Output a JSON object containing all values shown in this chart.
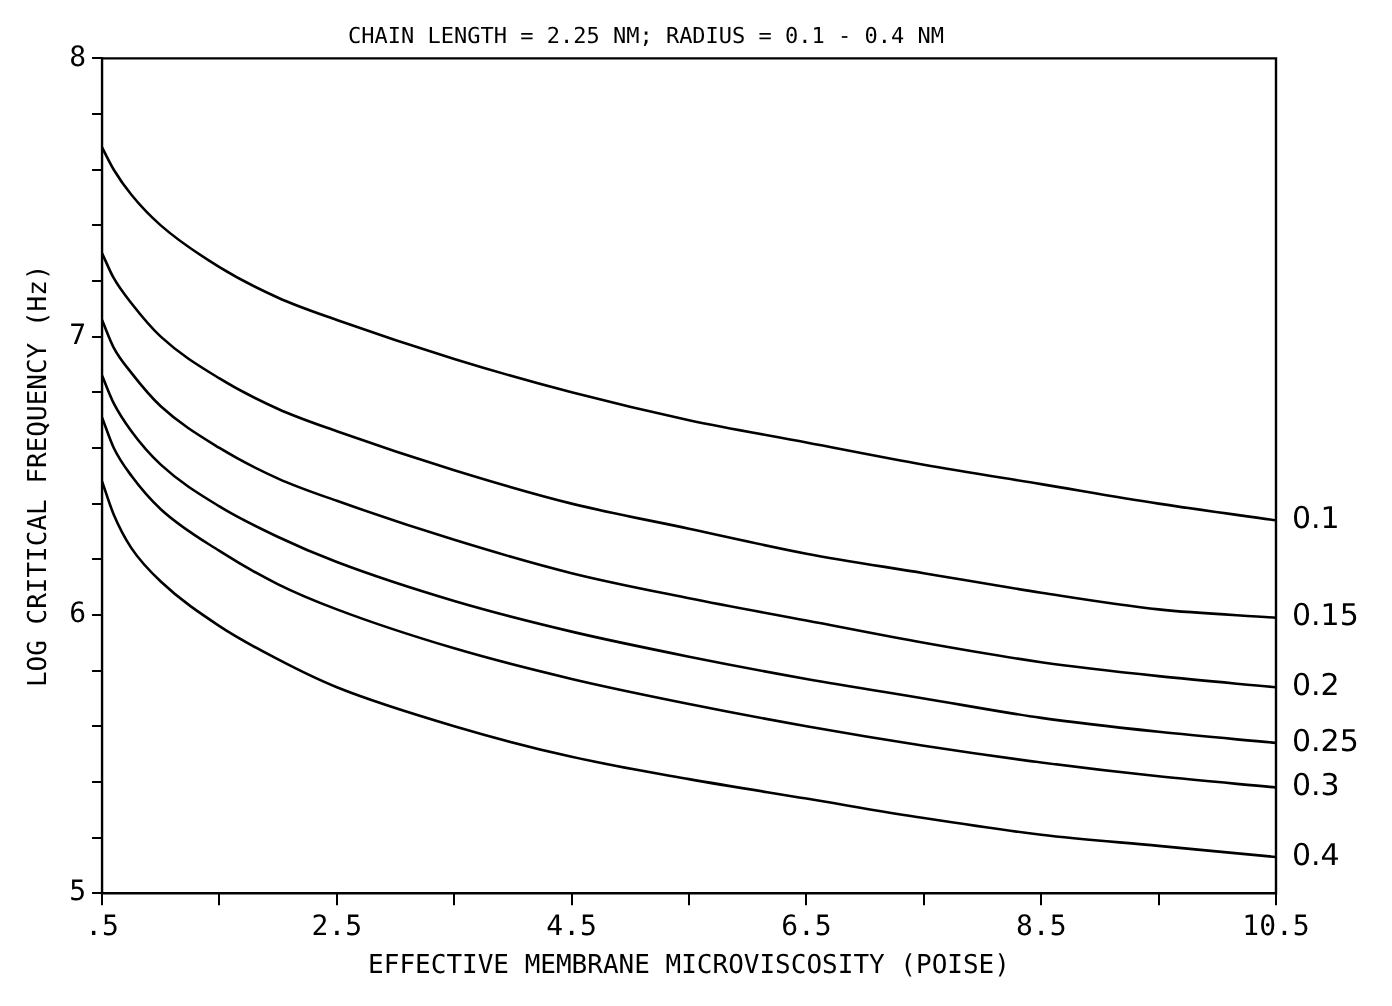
{
  "chart_data": {
    "type": "line",
    "title": "CHAIN LENGTH = 2.25 NM; RADIUS = 0.1 - 0.4 NM",
    "xlabel": "EFFECTIVE MEMBRANE MICROVISCOSITY (POISE)",
    "ylabel": "LOG CRITICAL FREQUENCY (Hz)",
    "x": [
      0.5,
      0.6,
      0.75,
      1,
      1.5,
      2,
      2.5,
      3.5,
      4.5,
      5.5,
      6.5,
      7.5,
      8.5,
      9.5,
      10.5
    ],
    "series": [
      {
        "name": "0.1",
        "color": "#000000",
        "values": [
          7.68,
          7.6,
          7.51,
          7.4,
          7.25,
          7.14,
          7.06,
          6.92,
          6.8,
          6.7,
          6.62,
          6.54,
          6.47,
          6.4,
          6.34
        ]
      },
      {
        "name": "0.15",
        "color": "#000000",
        "values": [
          7.3,
          7.21,
          7.12,
          7.0,
          6.85,
          6.74,
          6.66,
          6.52,
          6.4,
          6.31,
          6.22,
          6.15,
          6.08,
          6.02,
          5.99
        ]
      },
      {
        "name": "0.2",
        "color": "#000000",
        "values": [
          7.06,
          6.96,
          6.87,
          6.75,
          6.6,
          6.49,
          6.41,
          6.27,
          6.15,
          6.06,
          5.98,
          5.9,
          5.83,
          5.78,
          5.74
        ]
      },
      {
        "name": "0.25",
        "color": "#000000",
        "values": [
          6.86,
          6.76,
          6.66,
          6.54,
          6.39,
          6.28,
          6.19,
          6.05,
          5.94,
          5.85,
          5.77,
          5.7,
          5.63,
          5.58,
          5.54
        ]
      },
      {
        "name": "0.3",
        "color": "#000000",
        "values": [
          6.71,
          6.6,
          6.5,
          6.38,
          6.23,
          6.11,
          6.02,
          5.88,
          5.77,
          5.68,
          5.6,
          5.53,
          5.47,
          5.42,
          5.38
        ]
      },
      {
        "name": "0.4",
        "color": "#000000",
        "values": [
          6.48,
          6.36,
          6.24,
          6.12,
          5.96,
          5.84,
          5.74,
          5.6,
          5.49,
          5.41,
          5.34,
          5.27,
          5.21,
          5.17,
          5.13
        ]
      }
    ],
    "xlim": [
      0.5,
      10.5
    ],
    "xticks": [
      {
        "value": 0.5,
        "label": ".5"
      },
      {
        "value": 1.5,
        "label": null
      },
      2.5,
      {
        "value": 3.5,
        "label": null
      },
      4.5,
      {
        "value": 5.5,
        "label": null
      },
      6.5,
      {
        "value": 7.5,
        "label": null
      },
      8.5,
      {
        "value": 9.5,
        "label": null
      },
      10.5
    ],
    "ylim": [
      5,
      8
    ],
    "yticks": [
      5,
      {
        "value": 5.2,
        "label": null
      },
      {
        "value": 5.4,
        "label": null
      },
      {
        "value": 5.6,
        "label": null
      },
      {
        "value": 5.8,
        "label": null
      },
      6,
      {
        "value": 6.2,
        "label": null
      },
      {
        "value": 6.4,
        "label": null
      },
      {
        "value": 6.6,
        "label": null
      },
      {
        "value": 6.8,
        "label": null
      },
      7,
      {
        "value": 7.2,
        "label": null
      },
      {
        "value": 7.4,
        "label": null
      },
      {
        "value": 7.6,
        "label": null
      },
      {
        "value": 7.8,
        "label": null
      },
      8
    ],
    "grid": false,
    "legend": false,
    "marker": "none",
    "line_style": "solid"
  }
}
